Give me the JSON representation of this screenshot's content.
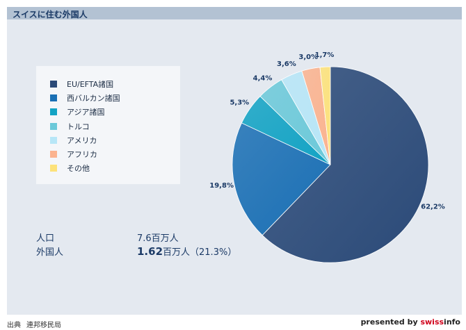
{
  "title": "スイスに住む外国人",
  "chart_data": {
    "type": "pie",
    "categories": [
      "EU/EFTA諸国",
      "西バルカン諸国",
      "アジア諸国",
      "トルコ",
      "アメリカ",
      "アフリカ",
      "その他"
    ],
    "values": [
      62.2,
      19.8,
      5.3,
      4.4,
      3.6,
      3.0,
      1.7
    ],
    "value_labels": [
      "62,2%",
      "19,8%",
      "5,3%",
      "4,4%",
      "3,6%",
      "3,0%",
      "1,7%"
    ],
    "colors": [
      "#2b4a78",
      "#1a6fb4",
      "#13a3c4",
      "#6cc9d9",
      "#b7e6f7",
      "#fbb38f",
      "#fde27a"
    ],
    "legend_position": "left"
  },
  "stats": {
    "population_label": "人口",
    "population_value": "7.6百万人",
    "foreign_label": "外国人",
    "foreign_value_big": "1.62",
    "foreign_value_rest": "百万人（21.3%）"
  },
  "source": {
    "label": "出典",
    "name": "連邦移民局"
  },
  "credit": {
    "prefix": "presented by ",
    "brand_a": "swiss",
    "brand_b": "info"
  }
}
